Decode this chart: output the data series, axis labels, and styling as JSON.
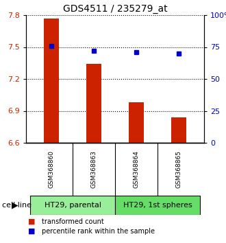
{
  "title": "GDS4511 / 235279_at",
  "samples": [
    "GSM368860",
    "GSM368863",
    "GSM368864",
    "GSM368865"
  ],
  "bar_values": [
    7.77,
    7.34,
    6.98,
    6.84
  ],
  "percentile_values": [
    76,
    72,
    71,
    70
  ],
  "bar_color": "#cc2200",
  "marker_color": "#0000cc",
  "ylim_left": [
    6.6,
    7.8
  ],
  "ylim_right": [
    0,
    100
  ],
  "yticks_left": [
    6.6,
    6.9,
    7.2,
    7.5,
    7.8
  ],
  "yticks_right": [
    0,
    25,
    50,
    75,
    100
  ],
  "ytick_labels_right": [
    "0",
    "25",
    "50",
    "75",
    "100%"
  ],
  "cell_lines": [
    "HT29, parental",
    "HT29, 1st spheres"
  ],
  "cell_line_colors": [
    "#99ee99",
    "#66dd66"
  ],
  "cell_line_spans": [
    [
      0,
      2
    ],
    [
      2,
      4
    ]
  ],
  "bar_bottom": 6.6,
  "tick_label_area_color": "#c8c8c8",
  "legend_items": [
    "transformed count",
    "percentile rank within the sample"
  ],
  "legend_colors": [
    "#cc2200",
    "#0000cc"
  ]
}
